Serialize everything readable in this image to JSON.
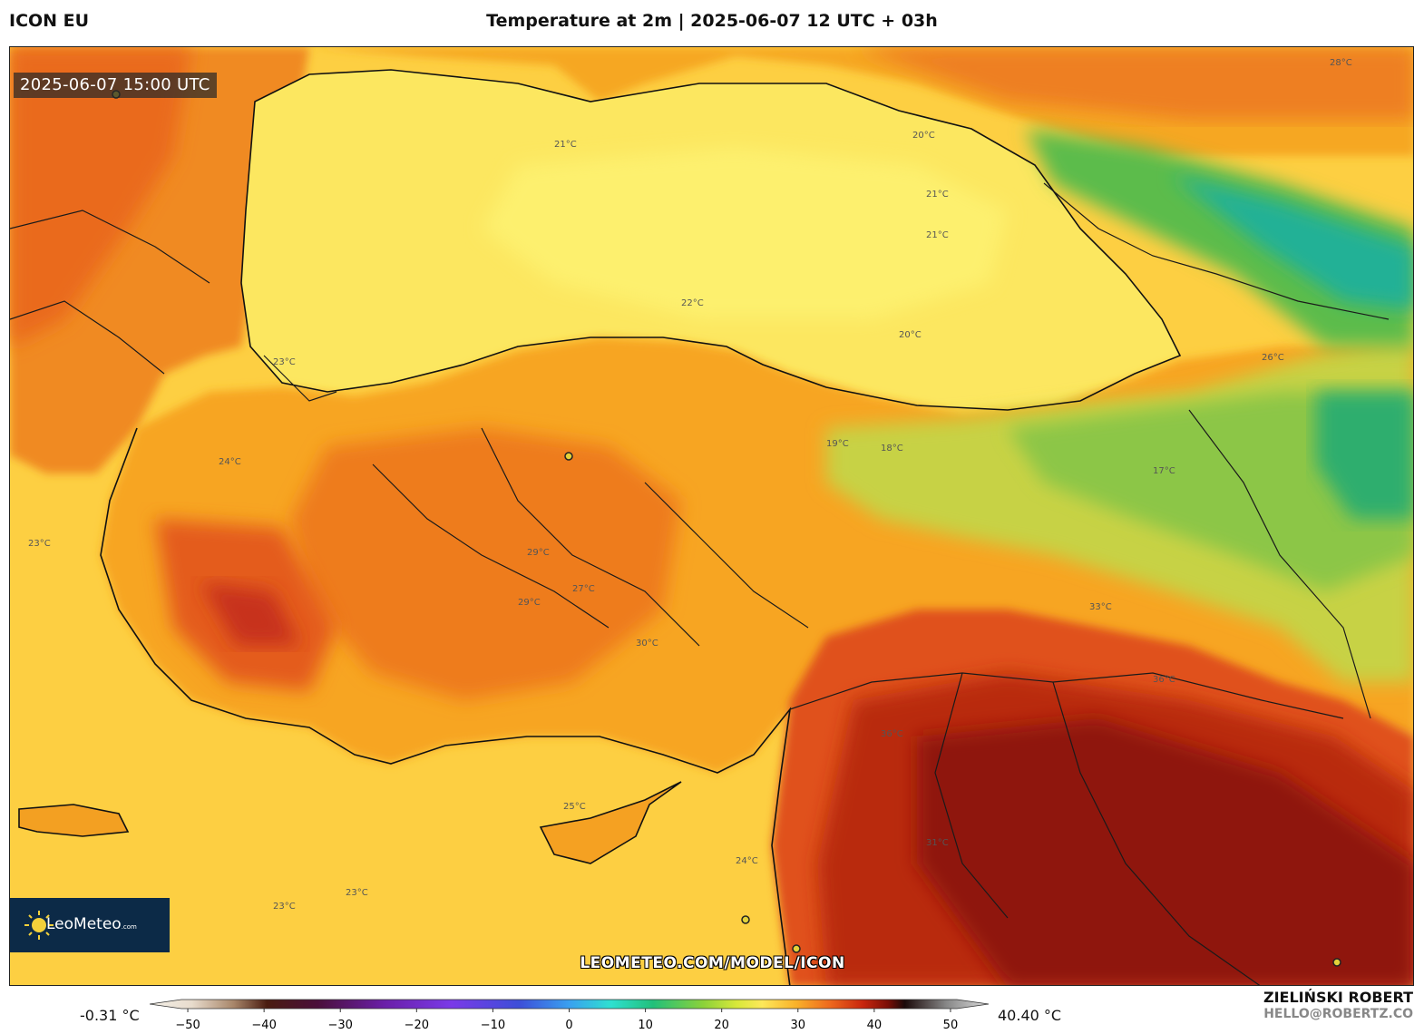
{
  "header": {
    "model": "ICON EU",
    "title": "Temperature at 2m | 2025-06-07 12 UTC + 03h"
  },
  "map": {
    "valid_time": "2025-06-07 15:00 UTC",
    "watermark": "LEOMETEO.COM/MODEL/ICON",
    "logo": {
      "brand": "LeoMeteo",
      "suffix": ".com"
    },
    "isotherm_labels": [
      "21°C",
      "21°C",
      "21°C",
      "20°C",
      "20°C",
      "22°C",
      "23°C",
      "24°C",
      "23°C",
      "23°C",
      "23°C",
      "26°C",
      "28°C",
      "29°C",
      "27°C",
      "30°C",
      "31°C",
      "33°C",
      "36°C",
      "36°C",
      "19°C",
      "17°C",
      "18°C",
      "25°C",
      "29°C",
      "24°C"
    ],
    "colors": {
      "sea_light": "#fdf06a",
      "sea": "#fdd44a",
      "land_warm": "#f6a21f",
      "land_hot": "#e8561a",
      "land_very_hot": "#b7260e",
      "desert": "#8a1508",
      "cool_green": "#43b649",
      "cold_teal": "#22b196"
    }
  },
  "colorbar": {
    "min_label": "-0.31 °C",
    "max_label": "40.40 °C",
    "ticks": [
      "−50",
      "−40",
      "−30",
      "−20",
      "−10",
      "0",
      "10",
      "20",
      "30",
      "40",
      "50"
    ],
    "tick_values": [
      -50,
      -40,
      -30,
      -20,
      -10,
      0,
      10,
      20,
      30,
      40,
      50
    ],
    "range": [
      -55,
      55
    ]
  },
  "footer": {
    "author": "ZIELIŃSKI ROBERT",
    "email": "HELLO@ROBERTZ.CO"
  }
}
